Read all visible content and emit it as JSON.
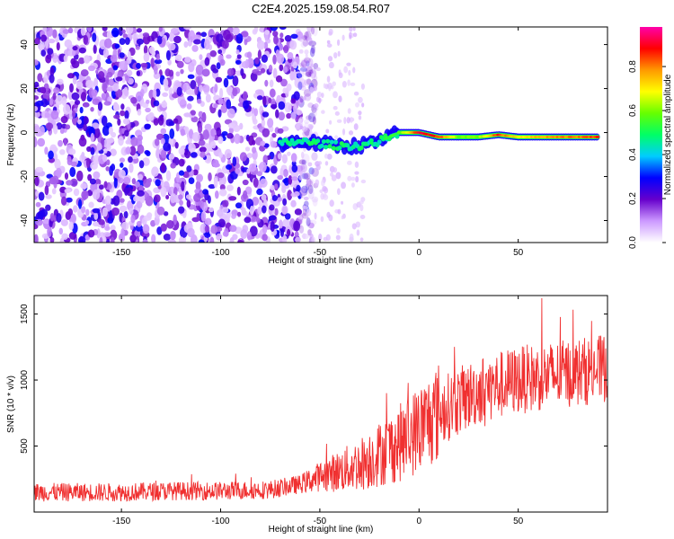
{
  "title": "C2E4.2025.159.08.54.R07",
  "chart_data": [
    {
      "type": "heatmap",
      "xlabel": "Height of straight line (km)",
      "ylabel": "Frequency (Hz)",
      "xlim": [
        -194,
        95
      ],
      "ylim": [
        -50,
        48
      ],
      "xticks": [
        -150,
        -100,
        -50,
        0,
        50
      ],
      "yticks": [
        -40,
        -20,
        0,
        20,
        40
      ],
      "colorbar": {
        "label": "Normalized spectral amplitude",
        "range": [
          0,
          0.98
        ],
        "ticks": [
          0.0,
          0.2,
          0.4,
          0.6,
          0.8
        ],
        "tick_labels": [
          "0.0",
          "0.2",
          "0.4",
          "0.6",
          "0.8"
        ],
        "colormap": [
          "#ffffff",
          "#cc99ff",
          "#6600cc",
          "#0000ff",
          "#00ccff",
          "#00ff66",
          "#66ff00",
          "#ffff00",
          "#ff9900",
          "#ff0000",
          "#ff00aa"
        ]
      },
      "noise_region": {
        "x_range": [
          -194,
          -60
        ],
        "freq_range": [
          -50,
          48
        ],
        "amplitude": [
          0.05,
          0.3
        ]
      },
      "signal_track": [
        {
          "x": -70,
          "freq": -5,
          "amp": 0.3
        },
        {
          "x": -60,
          "freq": -4,
          "amp": 0.35
        },
        {
          "x": -50,
          "freq": -5,
          "amp": 0.4
        },
        {
          "x": -40,
          "freq": -6,
          "amp": 0.45
        },
        {
          "x": -30,
          "freq": -6,
          "amp": 0.45
        },
        {
          "x": -20,
          "freq": -4,
          "amp": 0.5
        },
        {
          "x": -10,
          "freq": 0,
          "amp": 0.55
        },
        {
          "x": 0,
          "freq": 0,
          "amp": 0.9
        },
        {
          "x": 10,
          "freq": -2,
          "amp": 0.85
        },
        {
          "x": 20,
          "freq": -2,
          "amp": 0.6
        },
        {
          "x": 30,
          "freq": -2,
          "amp": 0.6
        },
        {
          "x": 40,
          "freq": -1,
          "amp": 0.85
        },
        {
          "x": 50,
          "freq": -2,
          "amp": 0.7
        },
        {
          "x": 60,
          "freq": -2,
          "amp": 0.75
        },
        {
          "x": 70,
          "freq": -2,
          "amp": 0.8
        },
        {
          "x": 80,
          "freq": -2,
          "amp": 0.8
        },
        {
          "x": 90,
          "freq": -2,
          "amp": 0.85
        }
      ]
    },
    {
      "type": "line",
      "xlabel": "Height of straight line (km)",
      "ylabel": "SNR (10 * v/v)",
      "xlim": [
        -194,
        95
      ],
      "ylim": [
        0,
        1640
      ],
      "xticks": [
        -150,
        -100,
        -50,
        0,
        50
      ],
      "yticks": [
        500,
        1000,
        1500
      ],
      "color": "#f03030",
      "series": [
        {
          "x": [
            -194,
            -175,
            -150,
            -125,
            -100,
            -75,
            -60,
            -50,
            -40,
            -30,
            -20,
            -10,
            0,
            10,
            20,
            30,
            40,
            50,
            60,
            70,
            80,
            95
          ],
          "values": [
            150,
            150,
            150,
            160,
            160,
            170,
            210,
            270,
            310,
            360,
            440,
            520,
            630,
            760,
            840,
            920,
            960,
            1000,
            1020,
            1040,
            1060,
            1090
          ]
        }
      ]
    }
  ]
}
